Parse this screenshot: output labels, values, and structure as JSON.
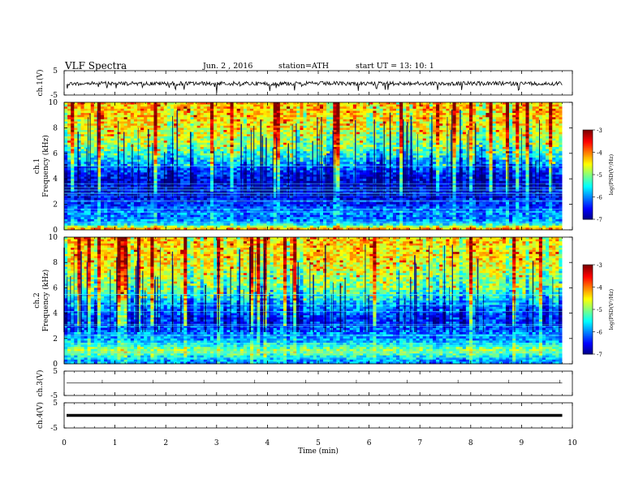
{
  "header": {
    "title": "VLF  Spectra",
    "date": "Jun. 2  , 2016",
    "station": "station=ATH",
    "start": "start  UT  =    13: 10: 1"
  },
  "colorbar": {
    "label": "log(PSD(V²/Hz)",
    "ticks": [
      "-3",
      "-4",
      "-5",
      "-6",
      "-7"
    ]
  },
  "chart_data": [
    {
      "type": "line",
      "panel": "ch1-waveform",
      "ylabel": "ch.1(V)",
      "yticks": [
        "5",
        "-5"
      ],
      "ylim": [
        -5,
        5
      ],
      "x_range_min": [
        0,
        9.8
      ],
      "description_level": -0.3
    },
    {
      "type": "heatmap",
      "panel": "ch1-spectrogram",
      "ylabel": "ch.1",
      "ylabel2": "Frequency  (kHz)",
      "yticks": [
        "10",
        "8",
        "6",
        "4",
        "2",
        "0"
      ],
      "ylim": [
        0,
        10
      ],
      "x_range_min": [
        0,
        9.8
      ],
      "zlim": [
        -7,
        -3
      ],
      "profile_khz": [
        0,
        0.5,
        1,
        1.5,
        2,
        2.5,
        3,
        3.5,
        4,
        4.5,
        5,
        5.5,
        6,
        6.5,
        7,
        7.5,
        8,
        8.5,
        9,
        9.5,
        10
      ],
      "profile_logpsd": [
        -3.8,
        -5.8,
        -6.0,
        -6.0,
        -6.3,
        -6.5,
        -6.6,
        -6.6,
        -6.5,
        -6.3,
        -6.0,
        -5.6,
        -5.3,
        -5.0,
        -4.8,
        -4.7,
        -4.5,
        -4.4,
        -4.3,
        -4.3,
        -4.2
      ]
    },
    {
      "type": "heatmap",
      "panel": "ch2-spectrogram",
      "ylabel": "ch.2",
      "ylabel2": "Frequency  (kHz)",
      "yticks": [
        "10",
        "8",
        "6",
        "4",
        "2",
        "0"
      ],
      "ylim": [
        0,
        10
      ],
      "x_range_min": [
        0,
        9.8
      ],
      "zlim": [
        -7,
        -3
      ],
      "profile_khz": [
        0,
        0.5,
        1,
        1.5,
        2,
        2.5,
        3,
        3.5,
        4,
        4.5,
        5,
        5.5,
        6,
        6.5,
        7,
        7.5,
        8,
        8.5,
        9,
        9.5,
        10
      ],
      "profile_logpsd": [
        -6.0,
        -5.6,
        -4.8,
        -5.4,
        -5.9,
        -6.0,
        -6.2,
        -6.3,
        -6.1,
        -5.9,
        -5.6,
        -5.3,
        -5.0,
        -4.9,
        -4.8,
        -4.6,
        -4.5,
        -4.4,
        -4.4,
        -4.3,
        -4.3
      ]
    },
    {
      "type": "line",
      "panel": "ch3-waveform",
      "ylabel": "ch.3(V)",
      "yticks": [
        "5",
        "-5"
      ],
      "ylim": [
        -5,
        5
      ],
      "x_range_min": [
        0,
        9.8
      ],
      "description_level": 0.1
    },
    {
      "type": "line",
      "panel": "ch4-waveform",
      "ylabel": "ch.4(V)",
      "yticks": [
        "5",
        "-5"
      ],
      "ylim": [
        -5,
        5
      ],
      "x_range_min": [
        0,
        9.8
      ],
      "description_level": 0.0
    }
  ],
  "xaxis": {
    "label": "Time  (min)",
    "ticks": [
      "0",
      "1",
      "2",
      "3",
      "4",
      "5",
      "6",
      "7",
      "8",
      "9",
      "10"
    ],
    "xlim": [
      0,
      10
    ]
  }
}
